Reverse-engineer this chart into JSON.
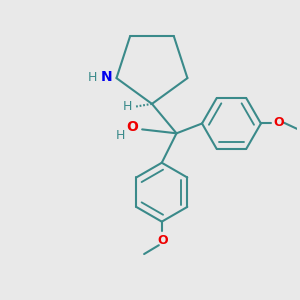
{
  "background_color": "#e9e9e9",
  "bond_color": "#3a8a8a",
  "N_color": "#0000ee",
  "O_color": "#ee0000",
  "H_color": "#3a8a8a",
  "lw": 1.5,
  "dbo": 0.018,
  "figsize": [
    3.0,
    3.0
  ],
  "dpi": 100,
  "xlim": [
    -1.5,
    1.5
  ],
  "ylim": [
    -1.6,
    1.4
  ]
}
